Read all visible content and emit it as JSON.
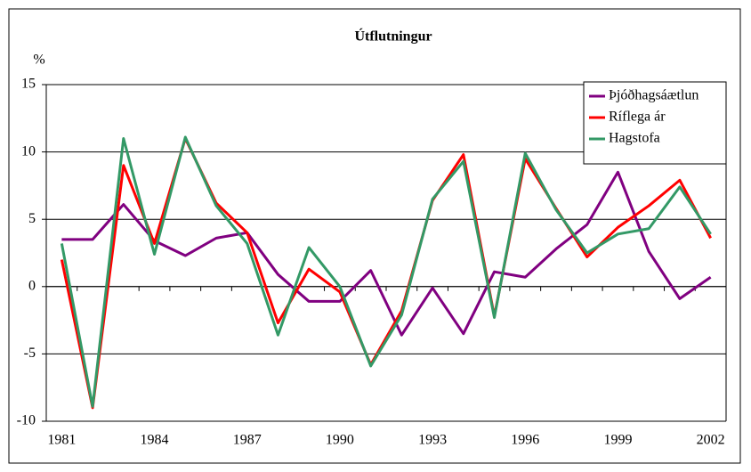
{
  "chart_data": {
    "type": "line",
    "title": "Útflutningur",
    "y_label": "%",
    "categories": [
      "1981",
      null,
      null,
      "1984",
      null,
      null,
      "1987",
      null,
      null,
      "1990",
      null,
      null,
      "1993",
      null,
      null,
      "1996",
      null,
      null,
      "1999",
      null,
      null,
      "2002"
    ],
    "series": [
      {
        "name": "Þjóðhagsáætlun",
        "color": "#800080",
        "values": [
          3.5,
          3.5,
          6.1,
          3.4,
          2.3,
          3.6,
          4.0,
          0.9,
          -1.1,
          -1.1,
          1.2,
          -3.6,
          -0.1,
          -3.5,
          1.1,
          0.7,
          2.8,
          4.6,
          8.5,
          2.6,
          -0.9,
          0.7
        ]
      },
      {
        "name": "Ríflega ár",
        "color": "#ff0000",
        "values": [
          2.0,
          -9.0,
          9.0,
          3.2,
          11.0,
          6.2,
          4.0,
          -2.7,
          1.3,
          -0.4,
          -5.8,
          -1.8,
          6.4,
          9.8,
          -2.2,
          9.5,
          5.8,
          2.2,
          4.4,
          6.0,
          7.9,
          3.6
        ]
      },
      {
        "name": "Hagstofa",
        "color": "#339966",
        "values": [
          3.2,
          -8.9,
          11.0,
          2.4,
          11.1,
          6.0,
          3.2,
          -3.6,
          2.9,
          0.0,
          -5.9,
          -2.1,
          6.5,
          9.3,
          -2.3,
          9.9,
          5.7,
          2.5,
          3.9,
          4.3,
          7.4,
          3.9
        ]
      }
    ],
    "ylim": [
      -10,
      15
    ],
    "yticks": [
      -10,
      -5,
      0,
      5,
      10,
      15
    ],
    "grid": true,
    "legend": "top-right"
  }
}
